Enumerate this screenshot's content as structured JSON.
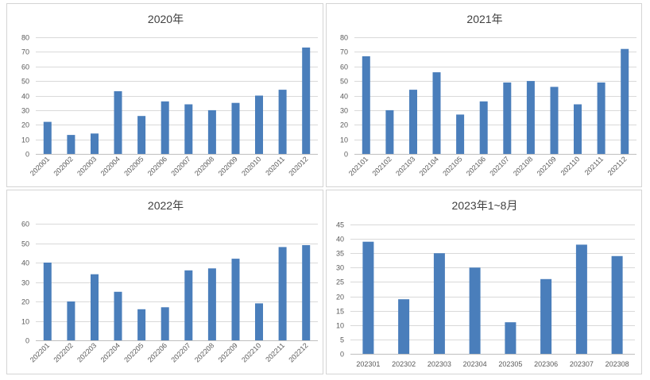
{
  "colors": {
    "bar": "#4a7ebb",
    "grid": "#d9d9d9",
    "axis": "#bfbfbf",
    "text": "#595959",
    "title": "#404040"
  },
  "chart_data": [
    {
      "type": "bar",
      "title": "2020年",
      "categories": [
        "202001",
        "202002",
        "202003",
        "202004",
        "202005",
        "202006",
        "202007",
        "202008",
        "202009",
        "202010",
        "202011",
        "202012"
      ],
      "values": [
        22,
        13,
        14,
        43,
        26,
        36,
        34,
        30,
        35,
        40,
        44,
        73
      ],
      "ylim": [
        0,
        80
      ],
      "ystep": 10,
      "yticks": [
        "0",
        "10",
        "20",
        "30",
        "40",
        "50",
        "60",
        "70",
        "80"
      ],
      "xlabel": "",
      "ylabel": "",
      "grid": true,
      "legend": "none",
      "rotated_labels": true
    },
    {
      "type": "bar",
      "title": "2021年",
      "categories": [
        "202101",
        "202102",
        "202103",
        "202104",
        "202105",
        "202106",
        "202107",
        "202108",
        "202109",
        "202110",
        "202111",
        "202112"
      ],
      "values": [
        67,
        30,
        44,
        56,
        27,
        36,
        49,
        50,
        46,
        34,
        49,
        72
      ],
      "ylim": [
        0,
        80
      ],
      "ystep": 10,
      "yticks": [
        "0",
        "10",
        "20",
        "30",
        "40",
        "50",
        "60",
        "70",
        "80"
      ],
      "xlabel": "",
      "ylabel": "",
      "grid": true,
      "legend": "none",
      "rotated_labels": true
    },
    {
      "type": "bar",
      "title": "2022年",
      "categories": [
        "202201",
        "202202",
        "202203",
        "202204",
        "202205",
        "202206",
        "202207",
        "202208",
        "202209",
        "202210",
        "202211",
        "202212"
      ],
      "values": [
        40,
        20,
        34,
        25,
        16,
        17,
        36,
        37,
        42,
        19,
        48,
        49
      ],
      "ylim": [
        0,
        60
      ],
      "ystep": 10,
      "yticks": [
        "0",
        "10",
        "20",
        "30",
        "40",
        "50",
        "60"
      ],
      "xlabel": "",
      "ylabel": "",
      "grid": true,
      "legend": "none",
      "rotated_labels": true
    },
    {
      "type": "bar",
      "title": "2023年1~8月",
      "categories": [
        "202301",
        "202302",
        "202303",
        "202304",
        "202305",
        "202306",
        "202307",
        "202308"
      ],
      "values": [
        39,
        19,
        35,
        30,
        11,
        26,
        38,
        34
      ],
      "ylim": [
        0,
        45
      ],
      "ystep": 5,
      "yticks": [
        "0",
        "5",
        "10",
        "15",
        "20",
        "25",
        "30",
        "35",
        "40",
        "45"
      ],
      "xlabel": "",
      "ylabel": "",
      "grid": true,
      "legend": "none",
      "rotated_labels": false
    }
  ]
}
